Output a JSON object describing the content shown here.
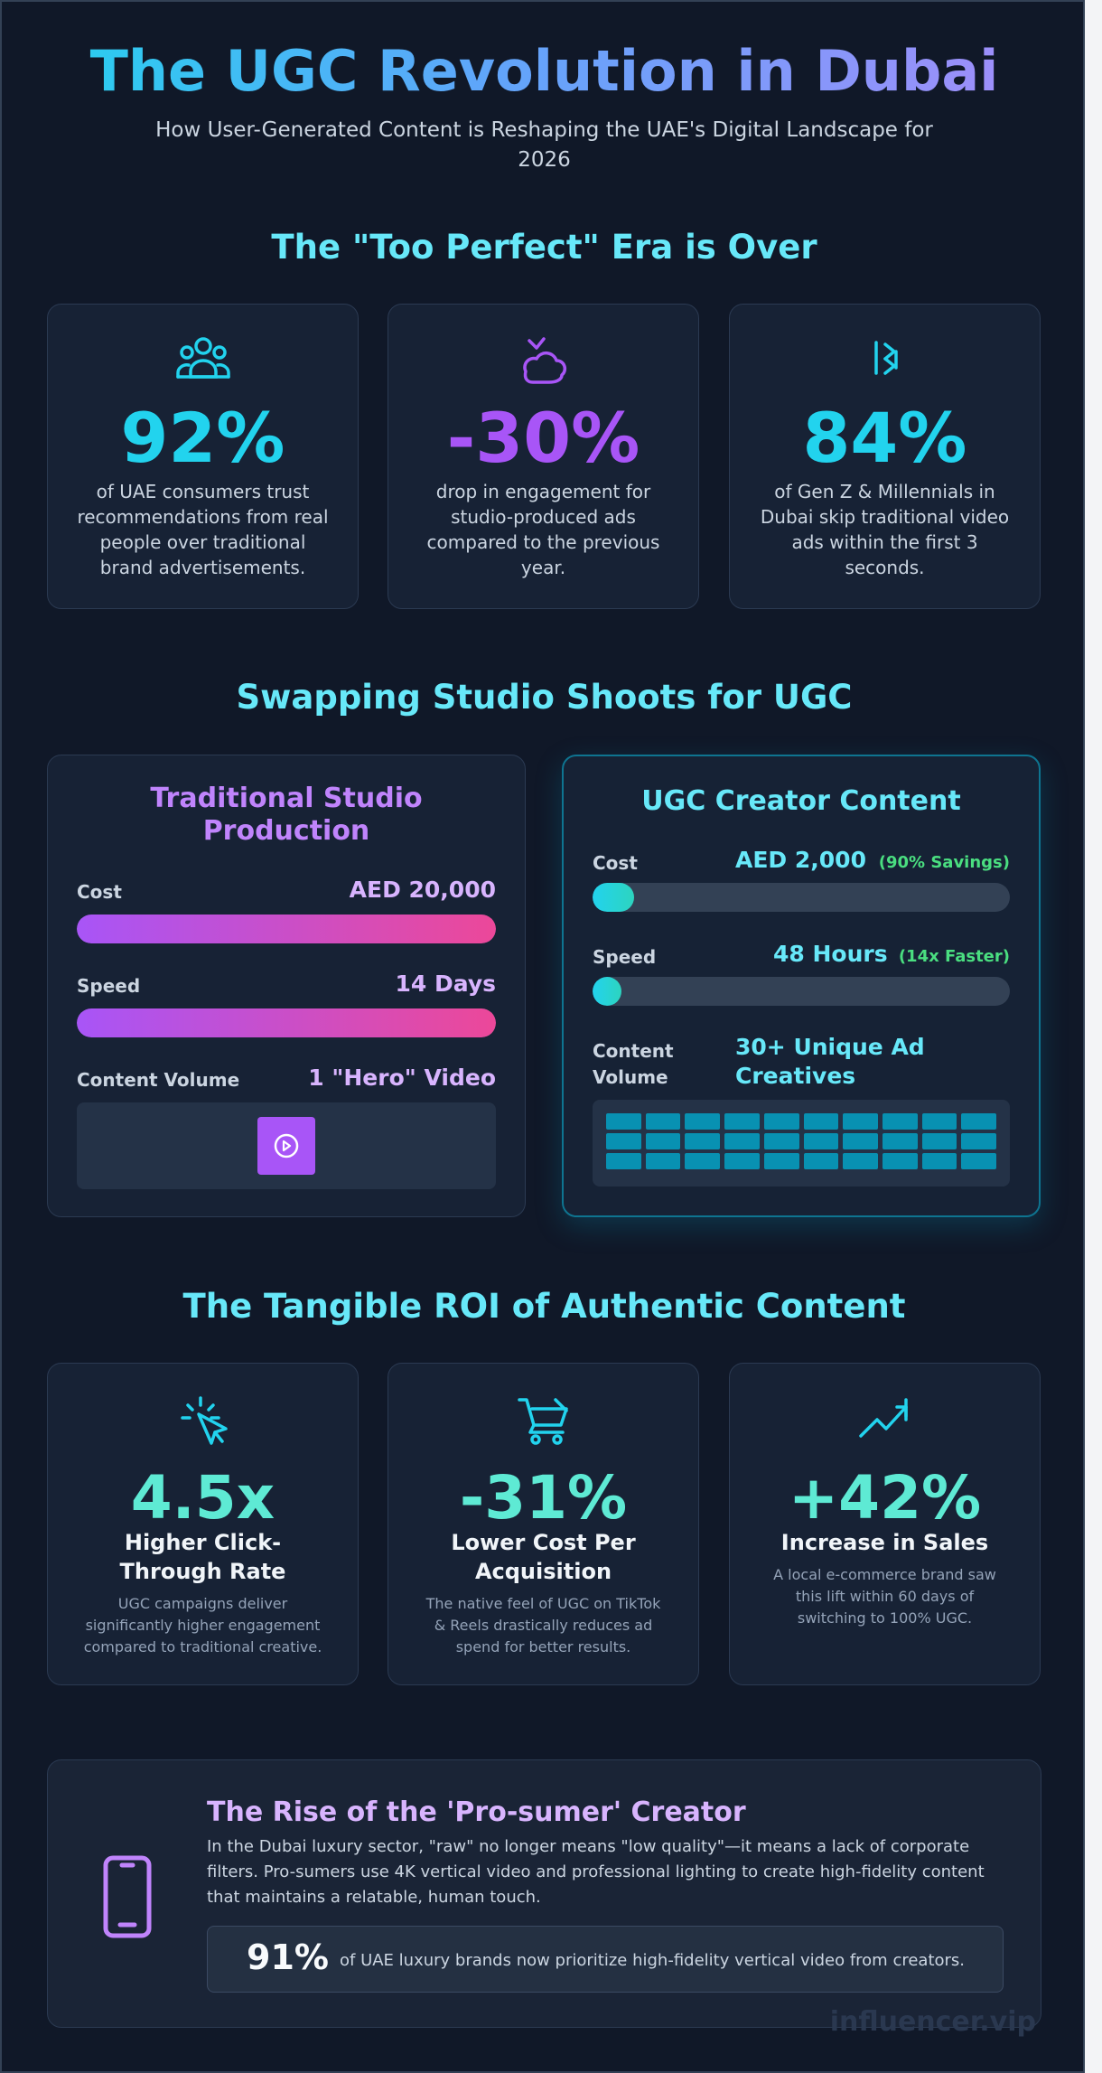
{
  "header": {
    "title": "The UGC Revolution in Dubai",
    "subtitle": "How User-Generated Content is Reshaping the UAE's Digital Landscape for 2026"
  },
  "section1": {
    "title": "The \"Too Perfect\" Era is Over",
    "cards": [
      {
        "icon": "users-icon",
        "value": "92%",
        "text": "of UAE consumers trust recommendations from real people over traditional brand advertisements.",
        "color": "#22d3ee"
      },
      {
        "icon": "thumbs-down-icon",
        "value": "-30%",
        "text": "drop in engagement for studio-produced ads compared to the previous year.",
        "color": "#a855f7"
      },
      {
        "icon": "skip-forward-icon",
        "value": "84%",
        "text": "of Gen Z & Millennials in Dubai skip traditional video ads within the first 3 seconds.",
        "color": "#22d3ee"
      }
    ]
  },
  "section2": {
    "title": "Swapping Studio Shoots for UGC",
    "traditional": {
      "title": "Traditional Studio Production",
      "cost_label": "Cost",
      "cost_value": "AED 20,000",
      "cost_fill": 1.0,
      "speed_label": "Speed",
      "speed_value": "14 Days",
      "speed_fill": 1.0,
      "volume_label": "Content Volume",
      "volume_value": "1 \"Hero\" Video",
      "volume_count": 1
    },
    "ugc": {
      "title": "UGC Creator Content",
      "cost_label": "Cost",
      "cost_value": "AED 2,000",
      "cost_note": "(90% Savings)",
      "cost_fill": 0.1,
      "speed_label": "Speed",
      "speed_value": "48 Hours",
      "speed_note": "(14x Faster)",
      "speed_fill": 0.07,
      "volume_label": "Content Volume",
      "volume_value": "30+ Unique Ad Creatives",
      "volume_count": 30
    }
  },
  "section3": {
    "title": "The Tangible ROI of Authentic Content",
    "cards": [
      {
        "icon": "cursor-click-icon",
        "value": "4.5x",
        "headline": "Higher Click-Through Rate",
        "text": "UGC campaigns deliver significantly higher engagement compared to traditional creative."
      },
      {
        "icon": "shopping-cart-icon",
        "value": "-31%",
        "headline": "Lower Cost Per Acquisition",
        "text": "The native feel of UGC on TikTok & Reels drastically reduces ad spend for better results."
      },
      {
        "icon": "trending-up-icon",
        "value": "+42%",
        "headline": "Increase in Sales",
        "text": "A local e-commerce brand saw this lift within 60 days of switching to 100% UGC."
      }
    ]
  },
  "prosumer": {
    "icon": "smartphone-icon",
    "title": "The Rise of the 'Pro-sumer' Creator",
    "text": "In the Dubai luxury sector, \"raw\" no longer means \"low quality\"—it means a lack of corporate filters. Pro-sumers use 4K vertical video and professional lighting to create high-fidelity content that maintains a relatable, human touch.",
    "stat_value": "91%",
    "stat_text": "of UAE luxury brands now prioritize high-fidelity vertical video from creators."
  },
  "watermark": "influencer.vip"
}
